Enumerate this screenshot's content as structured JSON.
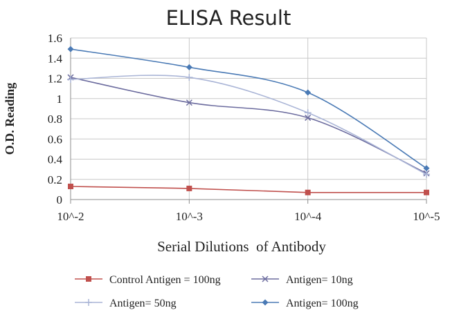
{
  "chart_data": {
    "type": "line",
    "title": "ELISA Result",
    "xlabel": "Serial Dilutions  of Antibody",
    "ylabel": "O.D. Reading",
    "categories": [
      "10^-2",
      "10^-3",
      "10^-4",
      "10^-5"
    ],
    "ylim": [
      0,
      1.6
    ],
    "yticks": [
      "0",
      "0.2",
      "0.4",
      "0.6",
      "0.8",
      "1",
      "1.2",
      "1.4",
      "1.6"
    ],
    "grid": true,
    "legend_position": "bottom",
    "series": [
      {
        "name": "Control Antigen = 100ng",
        "values": [
          0.13,
          0.11,
          0.07,
          0.07
        ],
        "color": "#c0504d",
        "marker": "square",
        "smooth": false
      },
      {
        "name": "Antigen= 10ng",
        "values": [
          1.21,
          0.96,
          0.81,
          0.26
        ],
        "color": "#6b6b9e",
        "marker": "x",
        "smooth": true
      },
      {
        "name": "Antigen= 50ng",
        "values": [
          1.19,
          1.21,
          0.86,
          0.25
        ],
        "color": "#a9b4d6",
        "marker": "plus",
        "smooth": true
      },
      {
        "name": "Antigen= 100ng",
        "values": [
          1.49,
          1.31,
          1.06,
          0.31
        ],
        "color": "#4a7ab5",
        "marker": "diamond",
        "smooth": true
      }
    ]
  }
}
